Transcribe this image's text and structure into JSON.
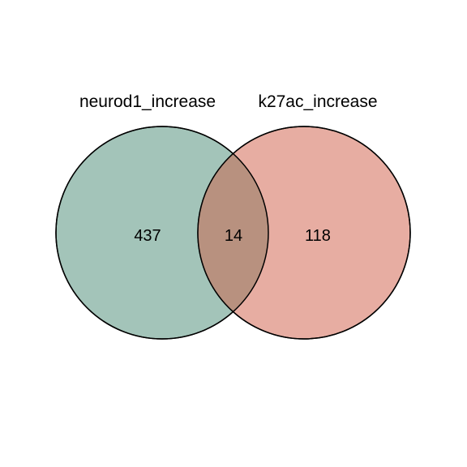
{
  "venn": {
    "sets": [
      {
        "label": "neurod1_increase",
        "color": "#a3c4b9",
        "exclusive_count": "437"
      },
      {
        "label": "k27ac_increase",
        "color": "#e7ada2",
        "exclusive_count": "118"
      }
    ],
    "overlap": {
      "count": "14",
      "color": "#b8917f"
    }
  }
}
